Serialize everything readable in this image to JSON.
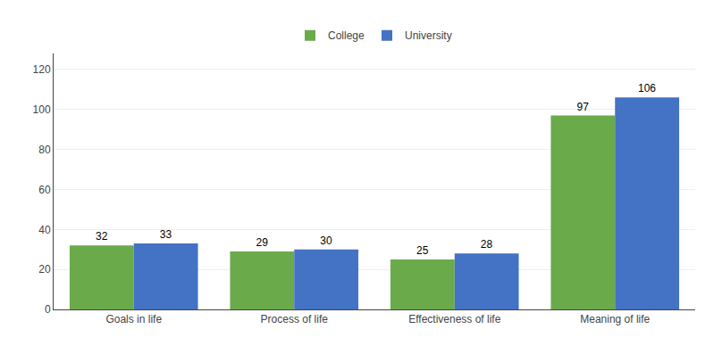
{
  "chart_data": {
    "type": "bar",
    "categories": [
      "Goals in life",
      "Process of life",
      "Effectiveness of life",
      "Meaning of life"
    ],
    "series": [
      {
        "name": "College",
        "color": "#6aaa4b",
        "values": [
          32,
          29,
          25,
          97
        ]
      },
      {
        "name": "University",
        "color": "#4472c4",
        "values": [
          33,
          30,
          28,
          106
        ]
      }
    ],
    "ylim": [
      0,
      128
    ],
    "yticks": [
      0,
      20,
      40,
      60,
      80,
      100,
      120
    ],
    "grid": true,
    "data_labels": true,
    "legend": "top"
  }
}
